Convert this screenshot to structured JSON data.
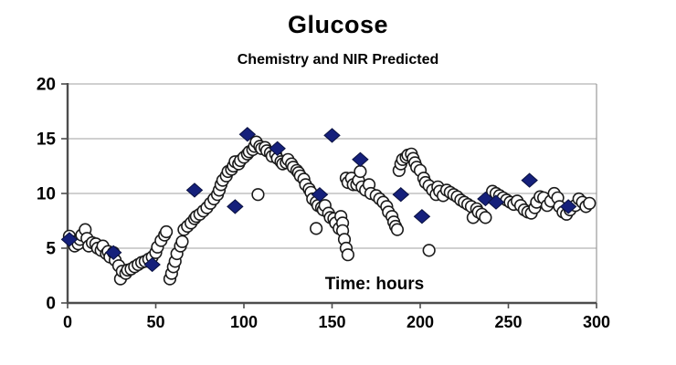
{
  "title": "Glucose",
  "subtitle": "Chemistry and NIR Predicted",
  "colors": {
    "background": "#ffffff",
    "text": "#000000",
    "axis_line": "#4d4d4d",
    "gridline": "#b3b3b3",
    "plot_border": "#999999",
    "circle_fill": "#ffffff",
    "circle_stroke": "#1a1a1a",
    "diamond_fill": "#15207b",
    "diamond_stroke": "#0a1140"
  },
  "chart_data": {
    "type": "scatter",
    "title": "Glucose",
    "subtitle": "Chemistry and NIR Predicted",
    "xlabel": "Time: hours",
    "ylabel": "",
    "xlim": [
      0,
      300
    ],
    "ylim": [
      0,
      20
    ],
    "x_ticks": [
      0,
      50,
      100,
      150,
      200,
      250,
      300
    ],
    "y_ticks": [
      0,
      5,
      10,
      15,
      20
    ],
    "grid": "horizontal",
    "legend_position": "none",
    "series": [
      {
        "name": "open-circle-series",
        "marker": "circle",
        "points": [
          [
            1,
            6.1
          ],
          [
            3,
            5.6
          ],
          [
            4,
            5.2
          ],
          [
            6,
            5.4
          ],
          [
            7,
            5.8
          ],
          [
            8,
            6.2
          ],
          [
            10,
            6.7
          ],
          [
            11,
            5.9
          ],
          [
            12,
            5.2
          ],
          [
            14,
            5.5
          ],
          [
            16,
            5.4
          ],
          [
            17,
            5.0
          ],
          [
            19,
            4.8
          ],
          [
            20,
            5.2
          ],
          [
            22,
            4.5
          ],
          [
            23,
            4.7
          ],
          [
            24,
            4.2
          ],
          [
            26,
            4.6
          ],
          [
            27,
            3.9
          ],
          [
            29,
            3.4
          ],
          [
            30,
            2.2
          ],
          [
            31,
            2.9
          ],
          [
            33,
            2.7
          ],
          [
            34,
            3.0
          ],
          [
            36,
            3.1
          ],
          [
            38,
            3.3
          ],
          [
            40,
            3.5
          ],
          [
            42,
            3.7
          ],
          [
            44,
            3.8
          ],
          [
            46,
            4.0
          ],
          [
            48,
            4.2
          ],
          [
            50,
            4.6
          ],
          [
            51,
            5.1
          ],
          [
            53,
            5.7
          ],
          [
            55,
            6.2
          ],
          [
            56,
            6.5
          ],
          [
            58,
            2.2
          ],
          [
            59,
            2.7
          ],
          [
            60,
            3.3
          ],
          [
            61,
            3.8
          ],
          [
            62,
            4.5
          ],
          [
            64,
            5.2
          ],
          [
            65,
            5.6
          ],
          [
            66,
            6.7
          ],
          [
            68,
            7.0
          ],
          [
            70,
            7.3
          ],
          [
            72,
            7.7
          ],
          [
            73,
            7.9
          ],
          [
            75,
            8.1
          ],
          [
            77,
            8.4
          ],
          [
            79,
            8.7
          ],
          [
            81,
            9.1
          ],
          [
            83,
            9.5
          ],
          [
            85,
            9.9
          ],
          [
            86,
            10.3
          ],
          [
            87,
            10.8
          ],
          [
            88,
            11.2
          ],
          [
            90,
            11.6
          ],
          [
            91,
            12.0
          ],
          [
            93,
            12.2
          ],
          [
            94,
            12.5
          ],
          [
            95,
            12.9
          ],
          [
            97,
            12.7
          ],
          [
            98,
            13.0
          ],
          [
            100,
            13.3
          ],
          [
            102,
            13.6
          ],
          [
            103,
            13.8
          ],
          [
            105,
            14.0
          ],
          [
            106,
            14.3
          ],
          [
            107,
            14.7
          ],
          [
            108,
            9.9
          ],
          [
            109,
            14.3
          ],
          [
            110,
            14.1
          ],
          [
            112,
            14.2
          ],
          [
            113,
            13.9
          ],
          [
            115,
            13.7
          ],
          [
            116,
            13.4
          ],
          [
            118,
            13.6
          ],
          [
            119,
            13.2
          ],
          [
            121,
            12.9
          ],
          [
            122,
            12.7
          ],
          [
            124,
            12.8
          ],
          [
            125,
            13.1
          ],
          [
            127,
            12.7
          ],
          [
            128,
            12.4
          ],
          [
            130,
            12.1
          ],
          [
            131,
            11.9
          ],
          [
            132,
            11.6
          ],
          [
            134,
            11.3
          ],
          [
            135,
            10.8
          ],
          [
            137,
            10.4
          ],
          [
            138,
            10.1
          ],
          [
            139,
            9.5
          ],
          [
            141,
            9.2
          ],
          [
            141,
            6.8
          ],
          [
            142,
            8.9
          ],
          [
            144,
            8.7
          ],
          [
            145,
            8.5
          ],
          [
            146,
            8.9
          ],
          [
            148,
            8.2
          ],
          [
            149,
            7.8
          ],
          [
            151,
            7.7
          ],
          [
            152,
            7.3
          ],
          [
            154,
            6.8
          ],
          [
            155,
            7.9
          ],
          [
            156,
            7.3
          ],
          [
            156,
            6.6
          ],
          [
            157,
            5.8
          ],
          [
            158,
            5.0
          ],
          [
            159,
            4.4
          ],
          [
            158,
            11.4
          ],
          [
            159,
            11.0
          ],
          [
            161,
            11.4
          ],
          [
            162,
            10.8
          ],
          [
            164,
            10.8
          ],
          [
            165,
            11.2
          ],
          [
            166,
            12.0
          ],
          [
            167,
            10.6
          ],
          [
            169,
            10.3
          ],
          [
            171,
            10.8
          ],
          [
            172,
            10.0
          ],
          [
            175,
            9.8
          ],
          [
            177,
            9.5
          ],
          [
            179,
            9.2
          ],
          [
            181,
            8.8
          ],
          [
            182,
            8.3
          ],
          [
            184,
            7.9
          ],
          [
            185,
            7.4
          ],
          [
            186,
            7.0
          ],
          [
            187,
            6.7
          ],
          [
            188,
            12.1
          ],
          [
            189,
            12.7
          ],
          [
            190,
            13.1
          ],
          [
            192,
            13.3
          ],
          [
            193,
            13.5
          ],
          [
            195,
            13.6
          ],
          [
            196,
            13.2
          ],
          [
            197,
            12.8
          ],
          [
            198,
            12.4
          ],
          [
            200,
            12.1
          ],
          [
            202,
            11.4
          ],
          [
            203,
            11.0
          ],
          [
            205,
            10.7
          ],
          [
            205,
            4.8
          ],
          [
            207,
            10.3
          ],
          [
            209,
            9.9
          ],
          [
            210,
            10.6
          ],
          [
            211,
            10.2
          ],
          [
            213,
            9.8
          ],
          [
            215,
            10.3
          ],
          [
            217,
            10.1
          ],
          [
            219,
            9.9
          ],
          [
            221,
            9.7
          ],
          [
            223,
            9.4
          ],
          [
            225,
            9.2
          ],
          [
            227,
            9.0
          ],
          [
            229,
            8.8
          ],
          [
            230,
            7.8
          ],
          [
            232,
            8.6
          ],
          [
            233,
            8.3
          ],
          [
            235,
            8.1
          ],
          [
            237,
            7.8
          ],
          [
            241,
            10.2
          ],
          [
            243,
            10.0
          ],
          [
            245,
            9.8
          ],
          [
            247,
            9.6
          ],
          [
            249,
            9.4
          ],
          [
            251,
            9.2
          ],
          [
            253,
            9.0
          ],
          [
            255,
            9.3
          ],
          [
            257,
            8.9
          ],
          [
            259,
            8.5
          ],
          [
            261,
            8.3
          ],
          [
            263,
            8.2
          ],
          [
            265,
            8.7
          ],
          [
            266,
            9.2
          ],
          [
            268,
            9.7
          ],
          [
            270,
            9.6
          ],
          [
            272,
            8.9
          ],
          [
            274,
            9.3
          ],
          [
            276,
            10.0
          ],
          [
            278,
            9.6
          ],
          [
            279,
            8.8
          ],
          [
            281,
            8.3
          ],
          [
            283,
            8.1
          ],
          [
            285,
            8.5
          ],
          [
            288,
            8.9
          ],
          [
            290,
            9.5
          ],
          [
            292,
            9.2
          ],
          [
            294,
            8.8
          ],
          [
            296,
            9.1
          ]
        ]
      },
      {
        "name": "filled-diamond-series",
        "marker": "diamond",
        "points": [
          [
            1,
            5.8
          ],
          [
            26,
            4.6
          ],
          [
            48,
            3.5
          ],
          [
            72,
            10.3
          ],
          [
            95,
            8.8
          ],
          [
            102,
            15.4
          ],
          [
            119,
            14.1
          ],
          [
            143,
            9.9
          ],
          [
            150,
            15.3
          ],
          [
            166,
            13.1
          ],
          [
            189,
            9.9
          ],
          [
            201,
            7.9
          ],
          [
            237,
            9.5
          ],
          [
            243,
            9.2
          ],
          [
            262,
            11.2
          ],
          [
            284,
            8.8
          ]
        ]
      }
    ]
  }
}
